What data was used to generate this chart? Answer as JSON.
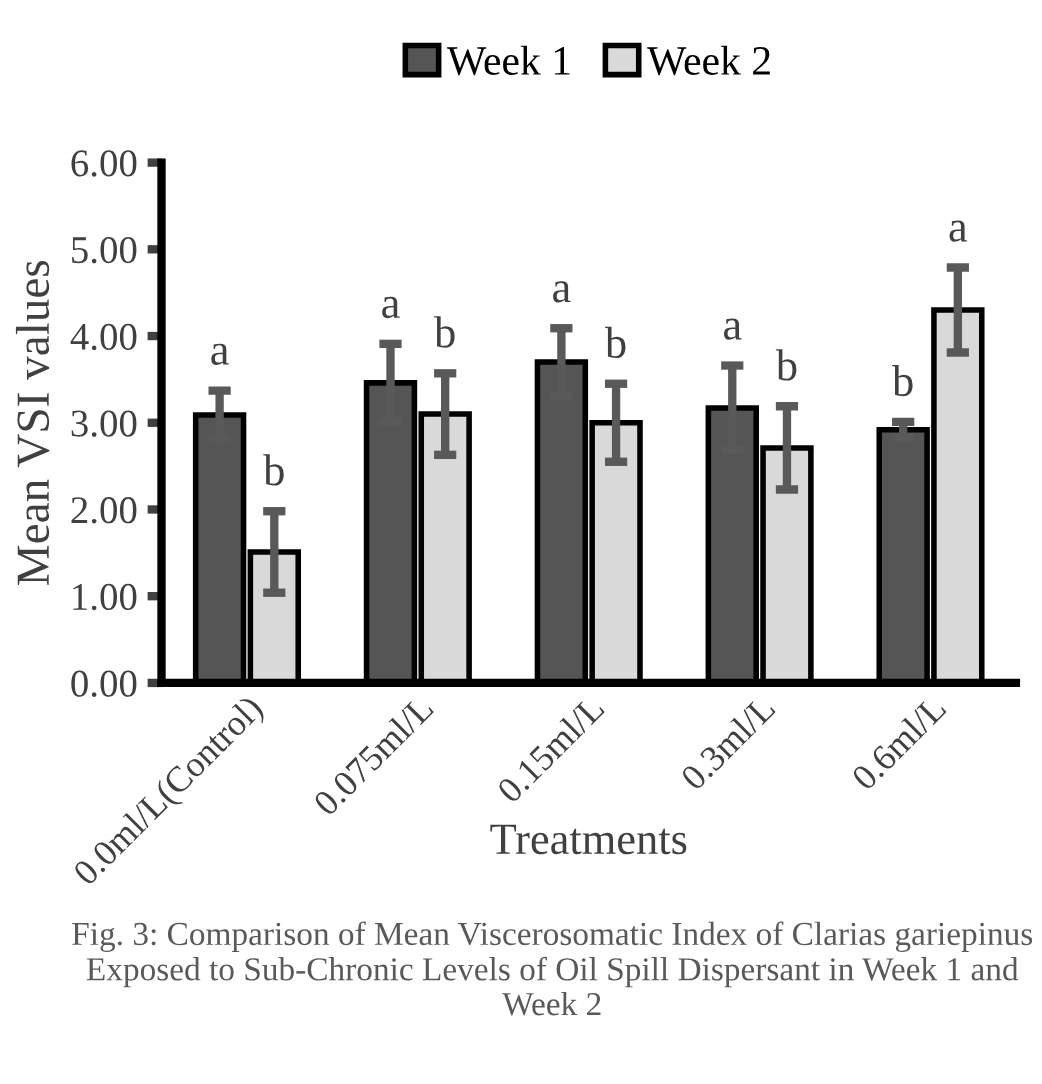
{
  "chart_data": {
    "type": "bar",
    "categories": [
      "0.0ml/L(Control)",
      "0.075ml/L",
      "0.15ml/L",
      "0.3ml/L",
      "0.6ml/L"
    ],
    "series": [
      {
        "name": "Week 1",
        "color": "#555555",
        "values": [
          3.09,
          3.46,
          3.7,
          3.17,
          2.92
        ],
        "errors": [
          0.28,
          0.45,
          0.39,
          0.49,
          0.09
        ],
        "value_labels": [
          "a",
          "a",
          "a",
          "a",
          "b"
        ]
      },
      {
        "name": "Week 2",
        "color": "#d9d9d9",
        "values": [
          1.51,
          3.1,
          3.0,
          2.71,
          4.3
        ],
        "errors": [
          0.47,
          0.47,
          0.45,
          0.48,
          0.49
        ],
        "value_labels": [
          "b",
          "b",
          "b",
          "b",
          "a"
        ]
      }
    ],
    "xlabel": "Treatments",
    "ylabel": "Mean VSI values",
    "ylim": [
      0,
      6
    ],
    "yticks": [
      {
        "value": 0,
        "label": "0.00"
      },
      {
        "value": 1,
        "label": "1.00"
      },
      {
        "value": 2,
        "label": "2.00"
      },
      {
        "value": 3,
        "label": "3.00"
      },
      {
        "value": 4,
        "label": "4.00"
      },
      {
        "value": 5,
        "label": "5.00"
      },
      {
        "value": 6,
        "label": "6.00"
      }
    ],
    "legend": "top",
    "grid": false,
    "annotations": [
      "Fig. 3: Comparison of Mean Viscerosomatic Index of Clarias gariepinus Exposed to Sub-Chronic Levels of Oil Spill Dispersant in Week 1 and Week 2"
    ]
  }
}
